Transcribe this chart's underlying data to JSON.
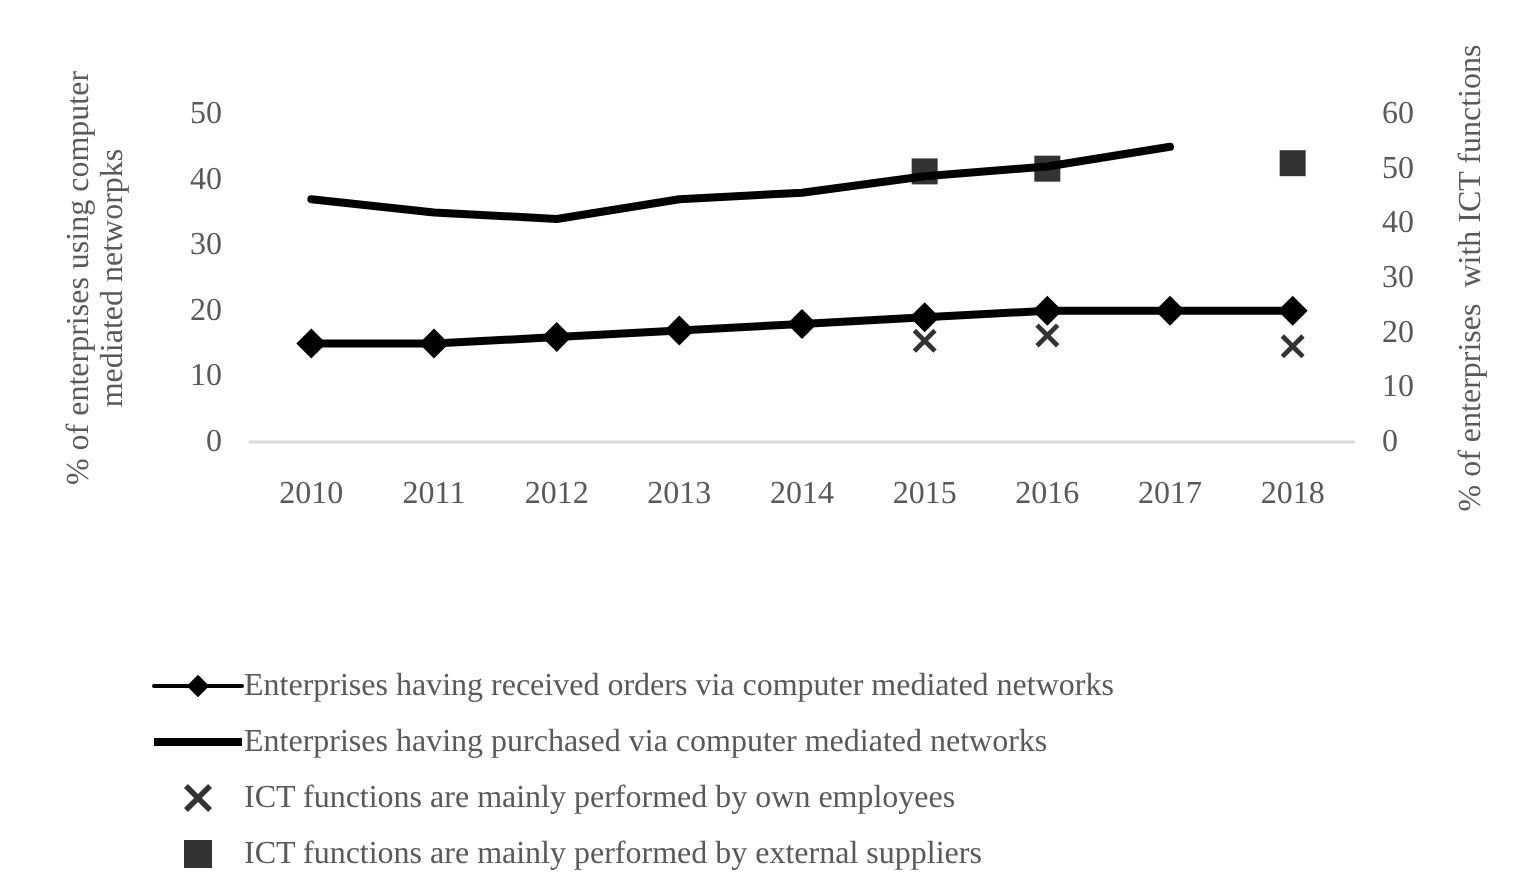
{
  "chart_data": {
    "type": "line",
    "categories": [
      "2010",
      "2011",
      "2012",
      "2013",
      "2014",
      "2015",
      "2016",
      "2017",
      "2018"
    ],
    "ylabel": "% of enterprises using computer mediated networpks",
    "y2label": "% of enterprises  with ICT functions",
    "ylim": [
      0,
      50
    ],
    "yticks": [
      0,
      10,
      20,
      30,
      40,
      50
    ],
    "y2lim": [
      0,
      60
    ],
    "y2ticks": [
      0,
      10,
      20,
      30,
      40,
      50,
      60
    ],
    "grid": false,
    "legend": "bottom",
    "series": [
      {
        "name": "Enterprises having received orders via computer mediated networks",
        "marker": "diamond",
        "color": "#000000",
        "values": [
          15,
          15,
          16,
          17,
          18,
          19,
          20,
          20,
          20
        ]
      },
      {
        "name": "Enterprises having purchased via computer mediated networks",
        "marker": "none",
        "color": "#000000",
        "values": [
          37,
          35,
          34,
          37,
          38,
          40.5,
          42,
          45,
          null
        ]
      },
      {
        "name": "ICT functions are mainly performed by own employees",
        "type": "scatter",
        "marker": "cross",
        "axis": "y2",
        "color": "#000000",
        "values": [
          null,
          null,
          null,
          null,
          null,
          18.5,
          19.5,
          null,
          17.5
        ]
      },
      {
        "name": "ICT functions are mainly performed by external suppliers",
        "type": "scatter",
        "marker": "square",
        "axis": "y2",
        "color": "#000000",
        "values": [
          null,
          null,
          null,
          null,
          null,
          49.5,
          50,
          null,
          51
        ]
      }
    ]
  }
}
